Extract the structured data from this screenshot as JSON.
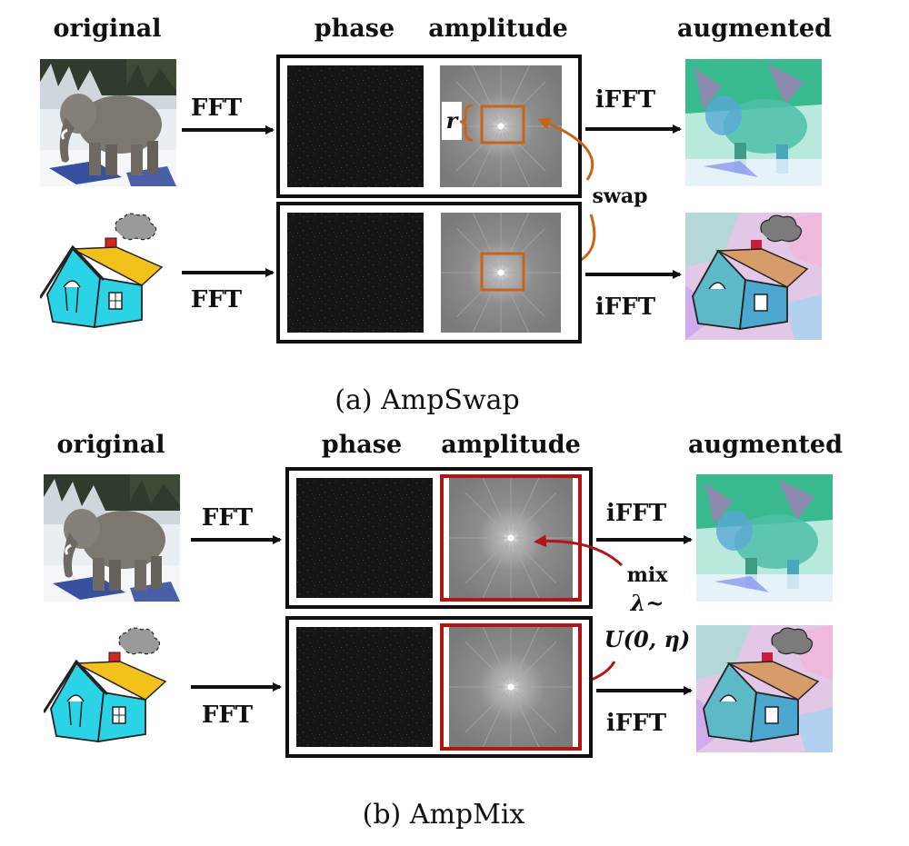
{
  "colors": {
    "orange": "#c8641a",
    "red": "#b31414",
    "phase_bg": "#141414",
    "amp_bg": "#8a8a8a",
    "house_blue": "#2ad4e6",
    "roof_yellow": "#f2c21b",
    "elephant": "#7c7870"
  },
  "panel_a": {
    "col_original": "original",
    "col_phase": "phase",
    "col_amplitude": "amplitude",
    "col_augmented": "augmented",
    "fft_top": "FFT",
    "fft_bottom": "FFT",
    "ifft_top": "iFFT",
    "ifft_bottom": "iFFT",
    "r_label": "r",
    "swap_label": "swap",
    "caption": "(a) AmpSwap"
  },
  "panel_b": {
    "col_original": "original",
    "col_phase": "phase",
    "col_amplitude": "amplitude",
    "col_augmented": "augmented",
    "fft_top": "FFT",
    "fft_bottom": "FFT",
    "ifft_top": "iFFT",
    "ifft_bottom": "iFFT",
    "mix_label": "mix",
    "lambda_label": "λ~",
    "dist_label": "U(0, η)",
    "caption": "(b) AmpMix"
  }
}
